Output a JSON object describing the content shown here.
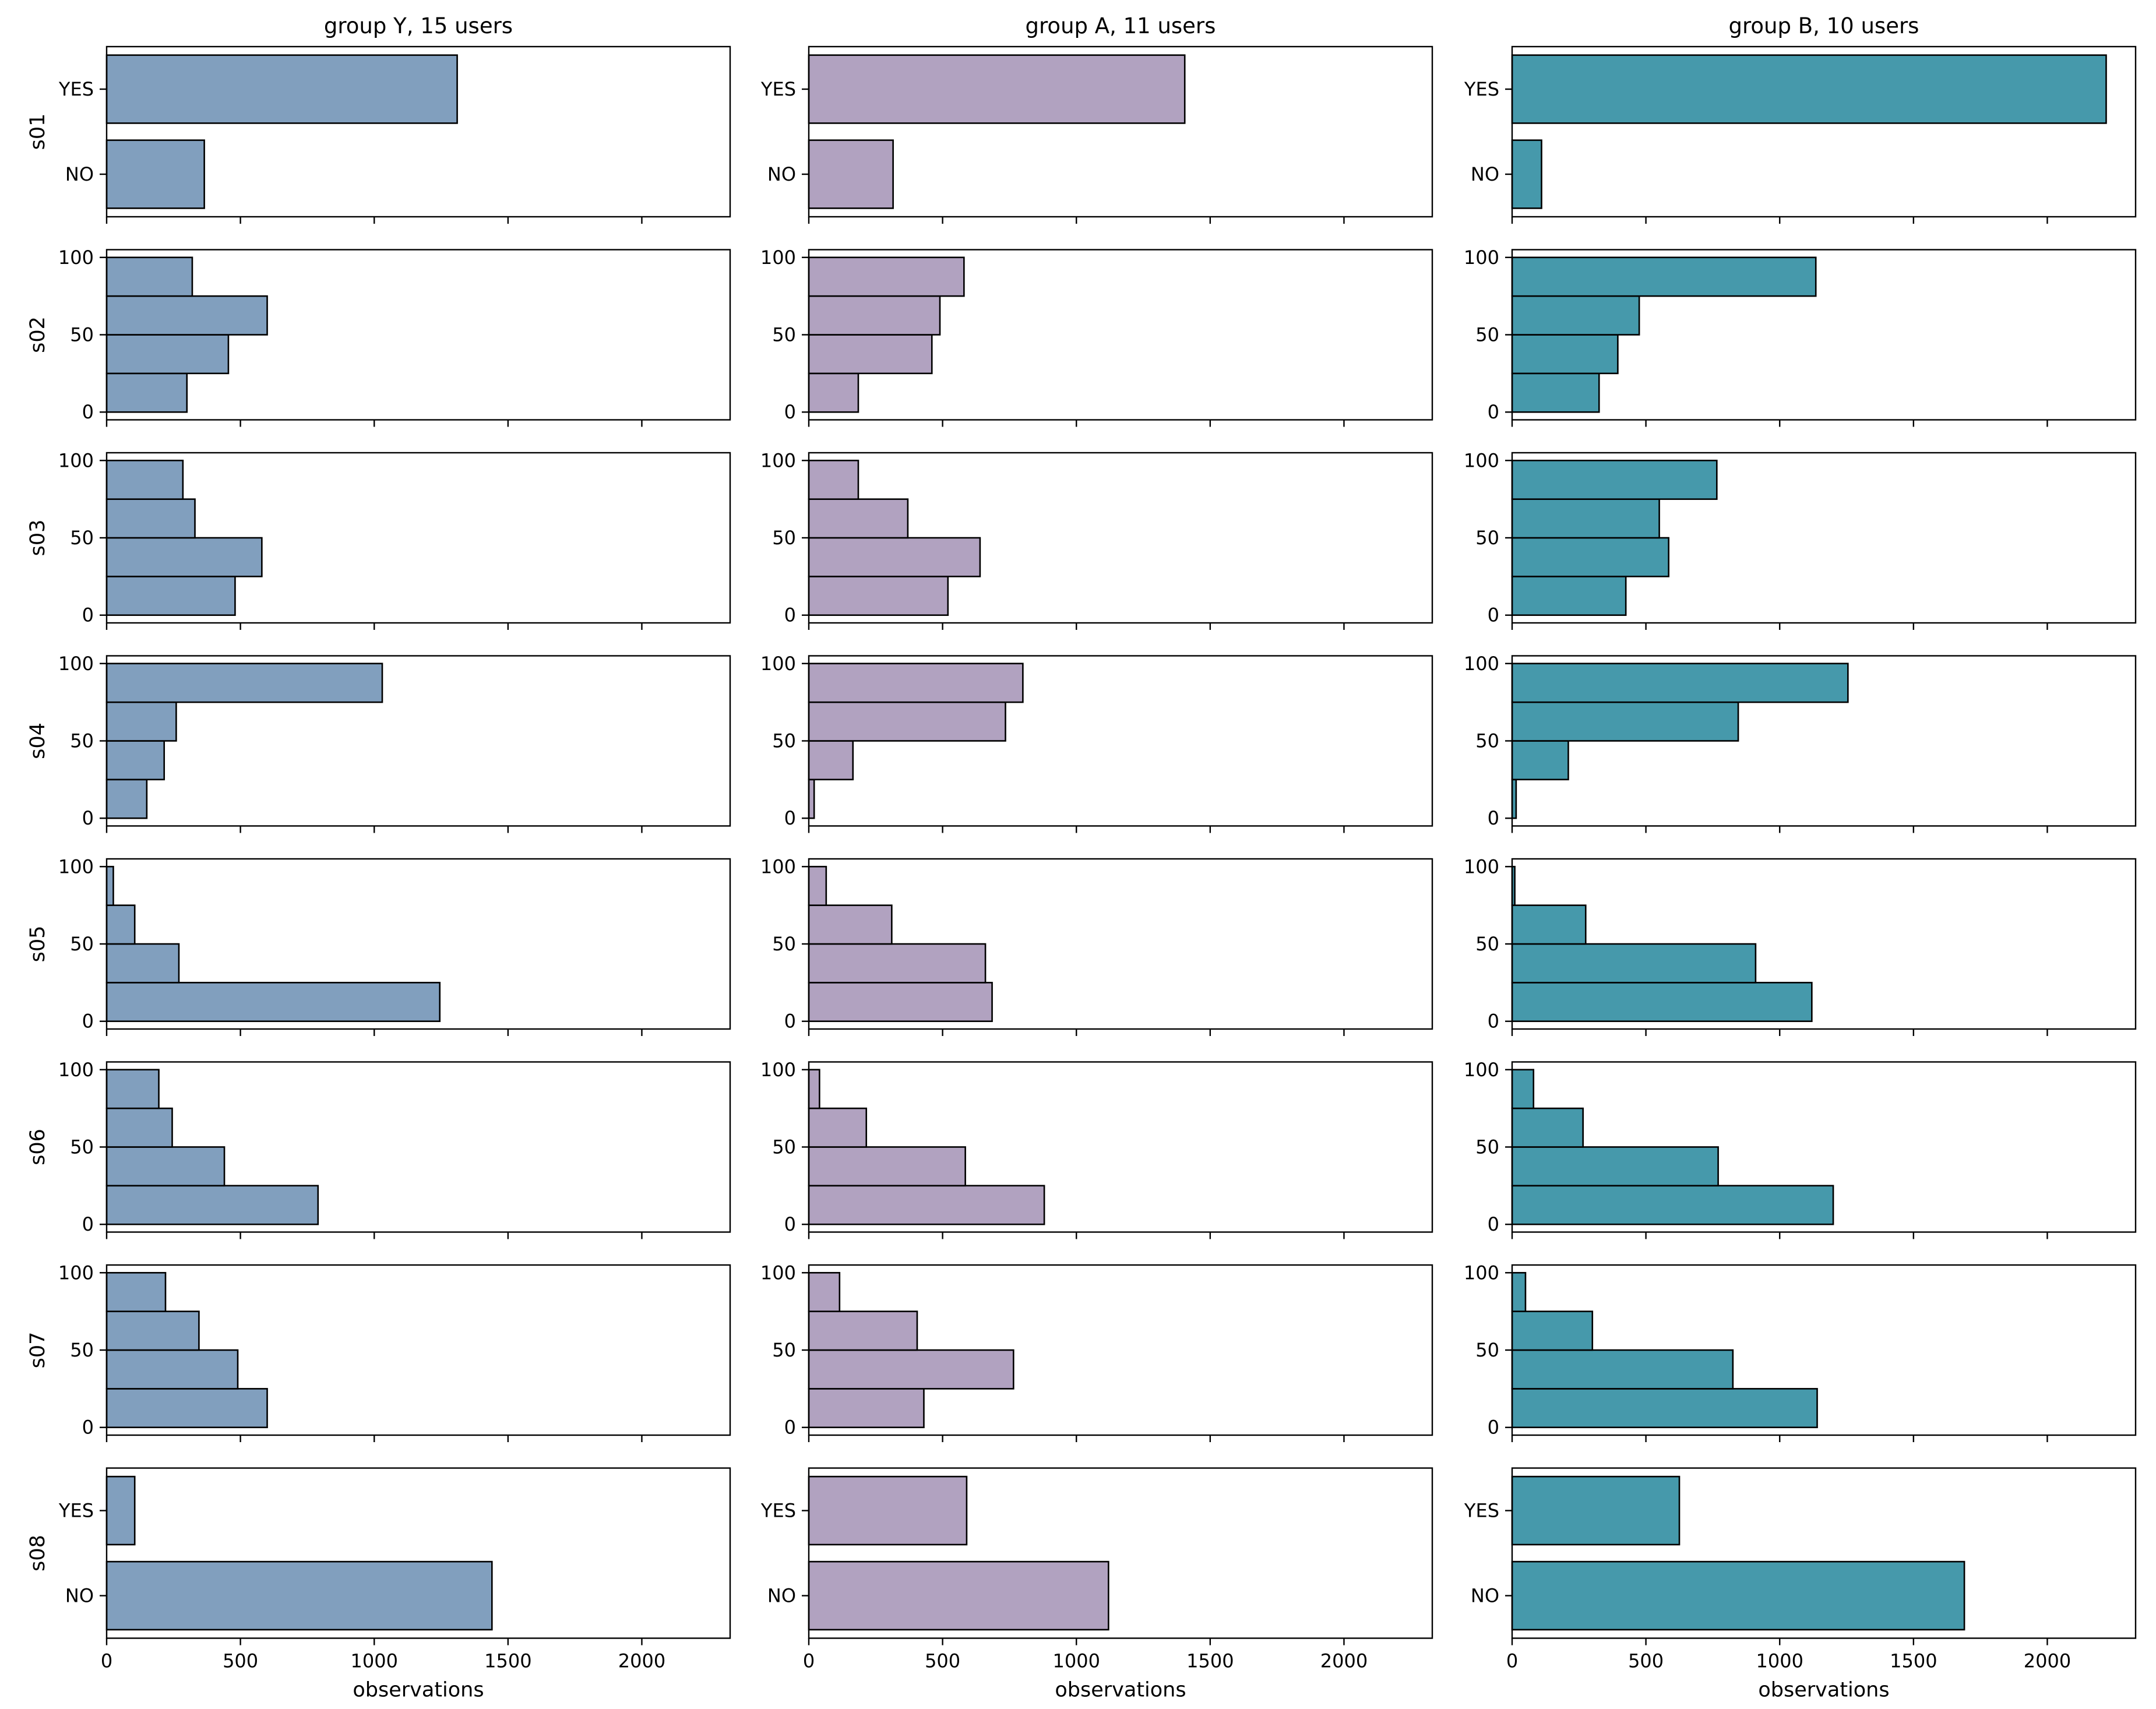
{
  "chart_data": {
    "type": "bar",
    "orientation": "horizontal",
    "layout": "small-multiples grid (8 rows x 3 columns)",
    "xlabel": "observations",
    "xlim": [
      0,
      2330
    ],
    "xticks": [
      0,
      500,
      1000,
      1500,
      2000
    ],
    "numeric_yticks": [
      0,
      50,
      100
    ],
    "groups": [
      {
        "title": "group Y, 15 users",
        "color": "#819fbe"
      },
      {
        "title": "group A, 11 users",
        "color": "#b1a2c0"
      },
      {
        "title": "group B, 10 users",
        "color": "#4699ab"
      }
    ],
    "rows": [
      {
        "label": "s01",
        "kind": "categorical",
        "categories": [
          "NO",
          "YES"
        ],
        "values": [
          [
            365,
            1310
          ],
          [
            315,
            1405
          ],
          [
            110,
            2220
          ]
        ]
      },
      {
        "label": "s02",
        "kind": "binned",
        "bins": [
          [
            0,
            25
          ],
          [
            25,
            50
          ],
          [
            50,
            75
          ],
          [
            75,
            100
          ]
        ],
        "values": [
          [
            300,
            455,
            600,
            320
          ],
          [
            185,
            460,
            490,
            580
          ],
          [
            325,
            395,
            475,
            1135
          ]
        ]
      },
      {
        "label": "s03",
        "kind": "binned",
        "bins": [
          [
            0,
            25
          ],
          [
            25,
            50
          ],
          [
            50,
            75
          ],
          [
            75,
            100
          ]
        ],
        "values": [
          [
            480,
            580,
            330,
            285
          ],
          [
            520,
            640,
            370,
            185
          ],
          [
            425,
            585,
            550,
            765
          ]
        ]
      },
      {
        "label": "s04",
        "kind": "binned",
        "bins": [
          [
            0,
            25
          ],
          [
            25,
            50
          ],
          [
            50,
            75
          ],
          [
            75,
            100
          ]
        ],
        "values": [
          [
            150,
            215,
            260,
            1030
          ],
          [
            20,
            165,
            735,
            800
          ],
          [
            15,
            210,
            845,
            1255
          ]
        ]
      },
      {
        "label": "s05",
        "kind": "binned",
        "bins": [
          [
            0,
            25
          ],
          [
            25,
            50
          ],
          [
            50,
            75
          ],
          [
            75,
            100
          ]
        ],
        "values": [
          [
            1245,
            270,
            105,
            25
          ],
          [
            685,
            660,
            310,
            65
          ],
          [
            1120,
            910,
            275,
            10
          ]
        ]
      },
      {
        "label": "s06",
        "kind": "binned",
        "bins": [
          [
            0,
            25
          ],
          [
            25,
            50
          ],
          [
            50,
            75
          ],
          [
            75,
            100
          ]
        ],
        "values": [
          [
            790,
            440,
            245,
            195
          ],
          [
            880,
            585,
            215,
            40
          ],
          [
            1200,
            770,
            265,
            80
          ]
        ]
      },
      {
        "label": "s07",
        "kind": "binned",
        "bins": [
          [
            0,
            25
          ],
          [
            25,
            50
          ],
          [
            50,
            75
          ],
          [
            75,
            100
          ]
        ],
        "values": [
          [
            600,
            490,
            345,
            220
          ],
          [
            430,
            765,
            405,
            115
          ],
          [
            1140,
            825,
            300,
            50
          ]
        ]
      },
      {
        "label": "s08",
        "kind": "categorical",
        "categories": [
          "NO",
          "YES"
        ],
        "values": [
          [
            1440,
            105
          ],
          [
            1120,
            590
          ],
          [
            1690,
            625
          ]
        ]
      }
    ]
  }
}
